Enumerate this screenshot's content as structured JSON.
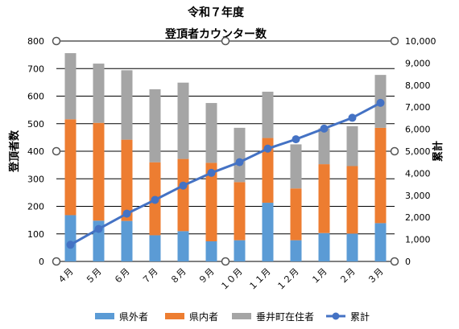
{
  "chart_data": {
    "type": "bar",
    "stacked": true,
    "title": "令和７年度",
    "subtitle": "登頂者カウンター数",
    "categories": [
      "４月",
      "５月",
      "６月",
      "７月",
      "８月",
      "９月",
      "１０月",
      "１１月",
      "１２月",
      "１月",
      "２月",
      "３月"
    ],
    "series": [
      {
        "name": "県外者",
        "color": "#5b9bd5",
        "values": [
          168,
          148,
          147,
          95,
          110,
          73,
          77,
          213,
          77,
          103,
          101,
          139
        ]
      },
      {
        "name": "県内者",
        "color": "#ed7d31",
        "values": [
          348,
          355,
          295,
          265,
          262,
          285,
          211,
          235,
          188,
          250,
          245,
          346
        ]
      },
      {
        "name": "垂井町在住者",
        "color": "#a5a5a5",
        "values": [
          240,
          215,
          252,
          265,
          277,
          217,
          197,
          168,
          160,
          130,
          145,
          192
        ]
      }
    ],
    "line_series": {
      "name": "累計",
      "color": "#4472c4",
      "axis": "right",
      "values": [
        756,
        1474,
        2168,
        2793,
        3442,
        4017,
        4502,
        5118,
        5543,
        6026,
        6517,
        7194
      ]
    },
    "ylabel": "登頂者数",
    "y2label": "累計",
    "ylim": [
      0,
      800
    ],
    "y2lim": [
      0,
      10000
    ],
    "yticks": [
      0,
      100,
      200,
      300,
      400,
      500,
      600,
      700,
      800
    ],
    "y2ticks": [
      "0",
      "1,000",
      "2,000",
      "3,000",
      "4,000",
      "5,000",
      "6,000",
      "7,000",
      "8,000",
      "9,000",
      "10,000"
    ],
    "grid": true,
    "legend": "bottom"
  }
}
